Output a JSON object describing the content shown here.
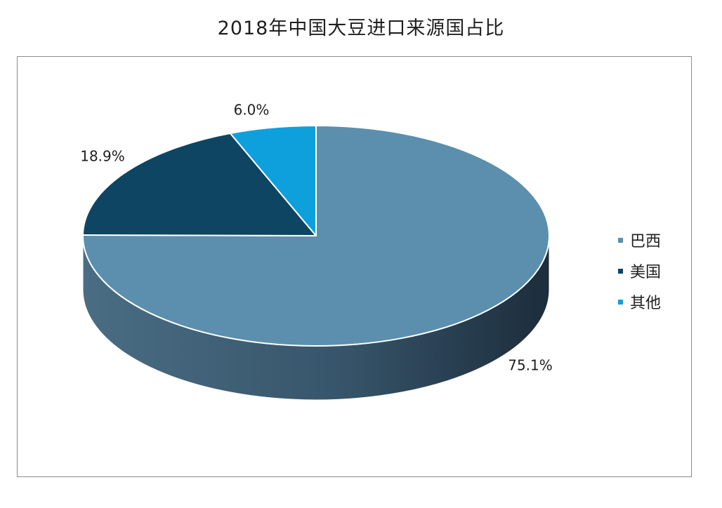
{
  "chart_data": {
    "type": "pie",
    "title": "2018年中国大豆进口来源国占比",
    "slices": [
      {
        "name": "巴西",
        "value": 75.1,
        "label": "75.1%",
        "color": "#5b8fad"
      },
      {
        "name": "美国",
        "value": 18.9,
        "label": "18.9%",
        "color": "#0d4563"
      },
      {
        "name": "其他",
        "value": 6.0,
        "label": "6.0%",
        "color": "#0ea0dd"
      }
    ],
    "legend_position": "right",
    "style": "3d"
  }
}
